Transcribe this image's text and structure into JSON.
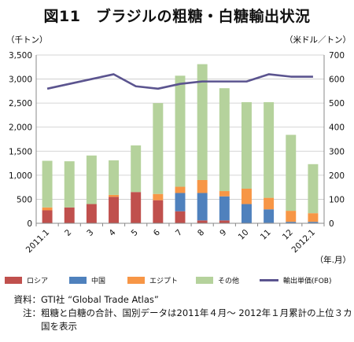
{
  "title": "図11　ブラジルの粗糖・白糖輸出状況",
  "chart_data": {
    "type": "bar",
    "stacked": true,
    "categories": [
      "2011.1",
      "2",
      "3",
      "4",
      "5",
      "6",
      "7",
      "8",
      "9",
      "10",
      "11",
      "12",
      "2012.1"
    ],
    "series": [
      {
        "name": "ロシア",
        "color": "#c0504d",
        "values": [
          270,
          330,
          400,
          550,
          650,
          480,
          250,
          60,
          60,
          0,
          10,
          0,
          0
        ]
      },
      {
        "name": "中国",
        "color": "#4f81bd",
        "values": [
          0,
          0,
          0,
          0,
          0,
          0,
          380,
          570,
          500,
          400,
          280,
          30,
          30
        ]
      },
      {
        "name": "エジプト",
        "color": "#f79646",
        "values": [
          60,
          0,
          0,
          40,
          0,
          130,
          130,
          270,
          110,
          320,
          240,
          230,
          180
        ]
      },
      {
        "name": "その他",
        "color": "#b5d29c",
        "values": [
          970,
          960,
          1010,
          720,
          970,
          1890,
          2310,
          2410,
          2140,
          1800,
          1990,
          1580,
          1020
        ]
      }
    ],
    "line_series": {
      "name": "輸出単価(FOB)",
      "color": "#5b548f",
      "axis": "right",
      "values": [
        560,
        580,
        600,
        620,
        570,
        560,
        580,
        590,
        590,
        590,
        620,
        610,
        610
      ]
    },
    "y_left": {
      "label": "（千トン）",
      "ylim": [
        0,
        3500
      ],
      "ticks": [
        "0",
        "500",
        "1,000",
        "1,500",
        "2,000",
        "2,500",
        "3,000",
        "3,500"
      ]
    },
    "y_right": {
      "label": "（米ドル／トン）",
      "ylim": [
        0,
        700
      ],
      "ticks": [
        "0",
        "100",
        "200",
        "300",
        "400",
        "500",
        "600",
        "700"
      ]
    },
    "xlabel": "（年.月）",
    "grid": true,
    "legend_placement": "bottom"
  },
  "legend": {
    "items": [
      {
        "label": "ロシア",
        "color": "#c0504d"
      },
      {
        "label": "中国",
        "color": "#4f81bd"
      },
      {
        "label": "エジプト",
        "color": "#f79646"
      },
      {
        "label": "その他",
        "color": "#b5d29c"
      }
    ],
    "line_label": "輸出単価(FOB)"
  },
  "notes": {
    "source_key": "資料：",
    "source_text": "GTI社 “Global Trade Atlas”",
    "note_key": "注：",
    "note_text": "粗糖と白糖の合計、国別データは2011年４月～ 2012年１月累計の上位３カ国を表示"
  }
}
